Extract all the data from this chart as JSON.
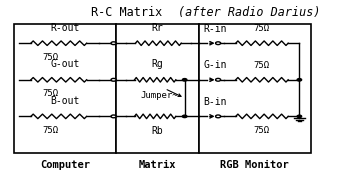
{
  "bg_color": "#ffffff",
  "line_color": "#000000",
  "labels_bottom": [
    "Computer",
    "Matrix",
    "RGB Monitor"
  ],
  "font_size_title": 8.5,
  "font_size_labels": 7,
  "font_size_ohm": 6.5,
  "font_size_box_label": 7.5,
  "row_labels_left": [
    "R-out",
    "G-out",
    "B-out"
  ],
  "row_labels_matrix": [
    "Rr",
    "Rg",
    "Rb"
  ],
  "row_labels_right": [
    "R-in",
    "G-in",
    "B-in"
  ],
  "ohm": "75Ω",
  "jumper_label": "Jumper~"
}
